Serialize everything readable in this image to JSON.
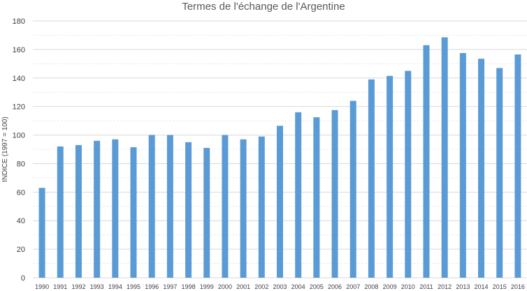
{
  "chart_data": {
    "type": "bar",
    "title": "Termes de l'échange de l'Argentine",
    "xlabel": "",
    "ylabel": "INDICE (1997 = 100)",
    "ylim": [
      0,
      180
    ],
    "yticks": [
      0,
      20,
      40,
      60,
      80,
      100,
      120,
      140,
      160,
      180
    ],
    "grid": true,
    "bar_color": "#5B9BD5",
    "categories": [
      "1990",
      "1991",
      "1992",
      "1993",
      "1994",
      "1995",
      "1996",
      "1997",
      "1998",
      "1999",
      "2000",
      "2001",
      "2002",
      "2003",
      "2004",
      "2005",
      "2006",
      "2007",
      "2008",
      "2009",
      "2010",
      "2011",
      "2012",
      "2013",
      "2014",
      "2015",
      "2016"
    ],
    "values": [
      63,
      92,
      93,
      96,
      97,
      91.5,
      100,
      100,
      95,
      91,
      100,
      97,
      99,
      106.5,
      116,
      112.5,
      117.5,
      124,
      139,
      141.5,
      145,
      163,
      168.5,
      157.5,
      153.5,
      147,
      156.5
    ]
  }
}
